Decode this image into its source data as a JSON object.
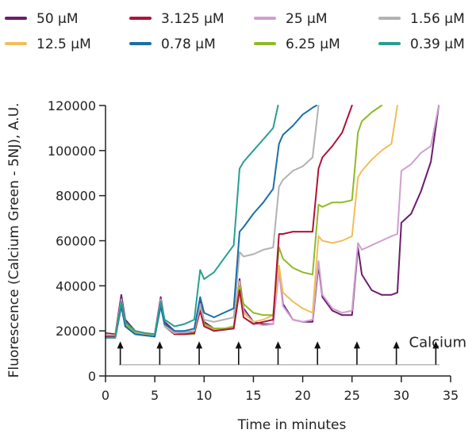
{
  "chart_data": {
    "type": "line",
    "title": "",
    "xlabel": "Time in minutes",
    "ylabel": "Fluorescence (Calcium Green - 5NJ), A.U.",
    "xlim": [
      0,
      35
    ],
    "ylim": [
      0,
      120000
    ],
    "xticks": [
      0,
      5,
      10,
      15,
      20,
      25,
      30,
      35
    ],
    "yticks": [
      0,
      20000,
      40000,
      60000,
      80000,
      100000,
      120000
    ],
    "xtick_labels": [
      "0",
      "5",
      "10",
      "15",
      "20",
      "25",
      "30",
      "35"
    ],
    "ytick_labels": [
      "0",
      "20000",
      "40000",
      "60000",
      "80000",
      "100000",
      "120000"
    ],
    "grid": false,
    "legend_position": "top",
    "annotation": {
      "label": "Calcium",
      "additions_min": [
        1.5,
        5.5,
        9.5,
        13.5,
        17.5,
        21.5,
        25.5,
        29.5,
        33.5
      ],
      "baseline_y": 5000,
      "arrow_top_y": 15000
    },
    "series": [
      {
        "name": "50 µM",
        "color": "#6b1c6e",
        "x": [
          0,
          1,
          1.6,
          2,
          3,
          4,
          5,
          5.6,
          6,
          7,
          8,
          9,
          9.6,
          10,
          11,
          12,
          13,
          13.6,
          14,
          15,
          16,
          17,
          17.6,
          18,
          19,
          20,
          21,
          21.6,
          22,
          23,
          24,
          25,
          25.6,
          26,
          27,
          28,
          29,
          29.6,
          30,
          31,
          32,
          33,
          33.8
        ],
        "y": [
          19000,
          18500,
          36000,
          25000,
          20000,
          19000,
          18500,
          35000,
          24000,
          20000,
          19500,
          19000,
          33000,
          24000,
          21000,
          21000,
          21000,
          43000,
          30000,
          24000,
          23000,
          23000,
          47000,
          32000,
          25000,
          24000,
          24000,
          49000,
          35000,
          29000,
          27000,
          27000,
          57000,
          45000,
          38000,
          36000,
          36000,
          37000,
          68000,
          72000,
          82000,
          95000,
          120000
        ]
      },
      {
        "name": "25 µM",
        "color": "#cf9fd0",
        "x": [
          0,
          1,
          1.6,
          2,
          3,
          4,
          5,
          5.6,
          6,
          7,
          8,
          9,
          9.6,
          10,
          11,
          12,
          13,
          13.6,
          14,
          15,
          16,
          17,
          17.6,
          18,
          19,
          20,
          21,
          21.6,
          22,
          23,
          24,
          25,
          25.6,
          26,
          27,
          28,
          29,
          29.6,
          30,
          31,
          32,
          33,
          33.8
        ],
        "y": [
          18500,
          18000,
          34000,
          24000,
          19500,
          19000,
          18000,
          34000,
          23000,
          19500,
          19000,
          19000,
          32000,
          23000,
          21000,
          21000,
          21000,
          42000,
          29000,
          23500,
          22500,
          23000,
          46000,
          31000,
          25000,
          24000,
          25000,
          51000,
          36000,
          30000,
          28000,
          29000,
          59000,
          56000,
          58000,
          60000,
          62000,
          63000,
          91000,
          94000,
          99000,
          102000,
          120000
        ]
      },
      {
        "name": "12.5 µM",
        "color": "#f2bd5a",
        "x": [
          0,
          1,
          1.6,
          2,
          3,
          4,
          5,
          5.6,
          6,
          7,
          8,
          9,
          9.6,
          10,
          11,
          12,
          13,
          13.6,
          14,
          15,
          16,
          17,
          17.6,
          18,
          19,
          20,
          21,
          21.6,
          22,
          23,
          24,
          25,
          25.6,
          26,
          27,
          28,
          29,
          29.6
        ],
        "y": [
          18000,
          18000,
          33000,
          23500,
          19000,
          18500,
          18000,
          33000,
          22500,
          19000,
          18500,
          19000,
          31000,
          22500,
          20500,
          20500,
          21000,
          41000,
          28000,
          24000,
          25000,
          27000,
          49000,
          37000,
          33000,
          30000,
          28000,
          62000,
          60000,
          59000,
          60000,
          62000,
          88000,
          91000,
          96000,
          100000,
          103000,
          120000
        ]
      },
      {
        "name": "6.25 µM",
        "color": "#8fba2a",
        "x": [
          0,
          1,
          1.6,
          2,
          3,
          4,
          5,
          5.6,
          6,
          7,
          8,
          9,
          9.6,
          10,
          11,
          12,
          13,
          13.6,
          14,
          15,
          16,
          17,
          17.6,
          18,
          19,
          20,
          21,
          21.6,
          22,
          23,
          24,
          25,
          25.6,
          26,
          27,
          28
        ],
        "y": [
          17500,
          17500,
          32000,
          23000,
          19000,
          18000,
          17500,
          32000,
          22000,
          18500,
          18500,
          18500,
          30000,
          23000,
          21000,
          21000,
          22000,
          40000,
          32000,
          28000,
          27000,
          27000,
          57000,
          52000,
          48000,
          46000,
          45000,
          76000,
          75000,
          77000,
          77000,
          78000,
          108000,
          113000,
          117000,
          120000
        ]
      },
      {
        "name": "3.125 µM",
        "color": "#b0123a",
        "x": [
          0,
          1,
          1.6,
          2,
          3,
          4,
          5,
          5.6,
          6,
          7,
          8,
          9,
          9.6,
          10,
          11,
          12,
          13,
          13.6,
          14,
          15,
          16,
          17,
          17.6,
          18,
          19,
          20,
          21,
          21.6,
          22,
          23,
          24,
          25
        ],
        "y": [
          17500,
          17500,
          32000,
          22000,
          18500,
          18000,
          17500,
          32000,
          22000,
          18500,
          18500,
          19000,
          29000,
          22000,
          20000,
          20500,
          21000,
          38000,
          26000,
          23000,
          24000,
          25000,
          63000,
          63000,
          64000,
          64000,
          64000,
          92000,
          97000,
          102000,
          108000,
          120000
        ]
      },
      {
        "name": "1.56 µM",
        "color": "#b2b2b2",
        "x": [
          0,
          1,
          1.6,
          2,
          3,
          4,
          5,
          5.6,
          6,
          7,
          8,
          9,
          9.6,
          10,
          11,
          12,
          13,
          13.6,
          14,
          15,
          16,
          17,
          17.6,
          18,
          19,
          20,
          21,
          21.6
        ],
        "y": [
          17000,
          17000,
          31000,
          22000,
          18500,
          18000,
          17500,
          31000,
          22000,
          19000,
          19500,
          20000,
          31000,
          25000,
          24000,
          25000,
          26000,
          55000,
          53000,
          54000,
          56000,
          57000,
          84000,
          87000,
          91000,
          93000,
          97000,
          120000
        ]
      },
      {
        "name": "0.78 µM",
        "color": "#1a6fa8",
        "x": [
          0,
          1,
          1.6,
          2,
          3,
          4,
          5,
          5.6,
          6,
          7,
          8,
          9,
          9.6,
          10,
          11,
          12,
          13,
          13.6,
          14,
          15,
          16,
          17,
          17.6,
          18,
          19,
          20,
          21,
          21.4
        ],
        "y": [
          17000,
          17000,
          31000,
          22000,
          18500,
          18000,
          17500,
          31000,
          23000,
          20000,
          20000,
          21000,
          35000,
          28000,
          26000,
          28000,
          30000,
          64000,
          66000,
          72000,
          77000,
          83000,
          103000,
          107000,
          111000,
          116000,
          119000,
          120000
        ]
      },
      {
        "name": "0.39 µM",
        "color": "#27a090",
        "x": [
          0,
          1,
          1.6,
          2,
          3,
          4,
          5,
          5.6,
          6,
          7,
          8,
          9,
          9.6,
          10,
          11,
          12,
          13,
          13.6,
          14,
          15,
          16,
          17,
          17.5
        ],
        "y": [
          17000,
          17000,
          33000,
          24000,
          20000,
          19000,
          18500,
          33000,
          25000,
          22000,
          23000,
          25000,
          47000,
          43000,
          46000,
          52000,
          58000,
          92000,
          95000,
          100000,
          105000,
          110000,
          120000
        ]
      }
    ]
  }
}
